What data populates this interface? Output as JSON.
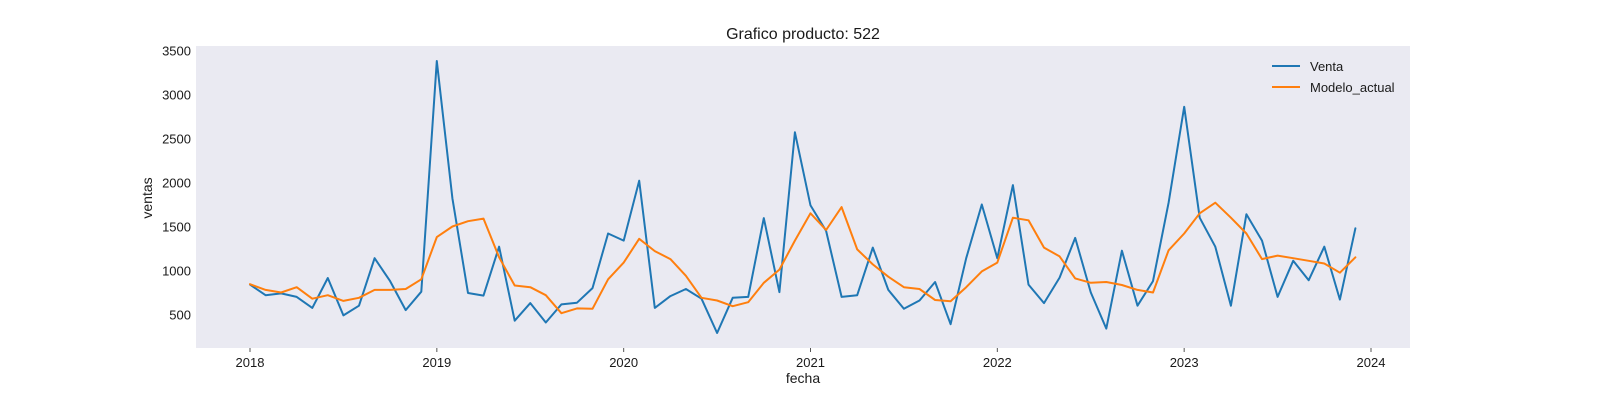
{
  "chart_data": {
    "type": "line",
    "title": "Grafico producto: 522",
    "xlabel": "fecha",
    "ylabel": "ventas",
    "x_start": "2018-01",
    "x_ticks": [
      "2018",
      "2019",
      "2020",
      "2021",
      "2022",
      "2023",
      "2024"
    ],
    "y_ticks": [
      "500",
      "1000",
      "1500",
      "2000",
      "2500",
      "3000",
      "3500"
    ],
    "ylim": [
      120,
      3550
    ],
    "grid": false,
    "legend_position": "top-right",
    "plot_background": "#eaeaf2",
    "series": [
      {
        "name": "Venta",
        "color": "#1f77b4",
        "values": [
          840,
          720,
          740,
          700,
          575,
          915,
          490,
          600,
          1140,
          880,
          550,
          760,
          3380,
          1820,
          745,
          715,
          1270,
          430,
          630,
          410,
          615,
          635,
          800,
          1420,
          1340,
          2020,
          575,
          710,
          790,
          680,
          290,
          690,
          700,
          1595,
          755,
          2570,
          1740,
          1450,
          700,
          720,
          1260,
          780,
          565,
          660,
          870,
          390,
          1140,
          1750,
          1140,
          1970,
          840,
          630,
          920,
          1370,
          750,
          340,
          1225,
          600,
          880,
          1770,
          2860,
          1600,
          1270,
          600,
          1640,
          1340,
          700,
          1110,
          890,
          1270,
          670,
          1480
        ]
      },
      {
        "name": "Modelo_actual",
        "color": "#ff7f0e",
        "values": [
          845,
          780,
          750,
          810,
          680,
          720,
          655,
          690,
          780,
          780,
          790,
          900,
          1380,
          1500,
          1560,
          1590,
          1150,
          830,
          810,
          720,
          515,
          570,
          565,
          900,
          1090,
          1360,
          1220,
          1130,
          940,
          690,
          660,
          595,
          640,
          860,
          1010,
          1340,
          1650,
          1460,
          1720,
          1240,
          1070,
          930,
          810,
          790,
          665,
          650,
          810,
          990,
          1090,
          1600,
          1570,
          1260,
          1160,
          910,
          860,
          870,
          835,
          780,
          750,
          1230,
          1420,
          1650,
          1770,
          1600,
          1420,
          1130,
          1170,
          1140,
          1110,
          1080,
          975,
          1150
        ]
      }
    ]
  }
}
